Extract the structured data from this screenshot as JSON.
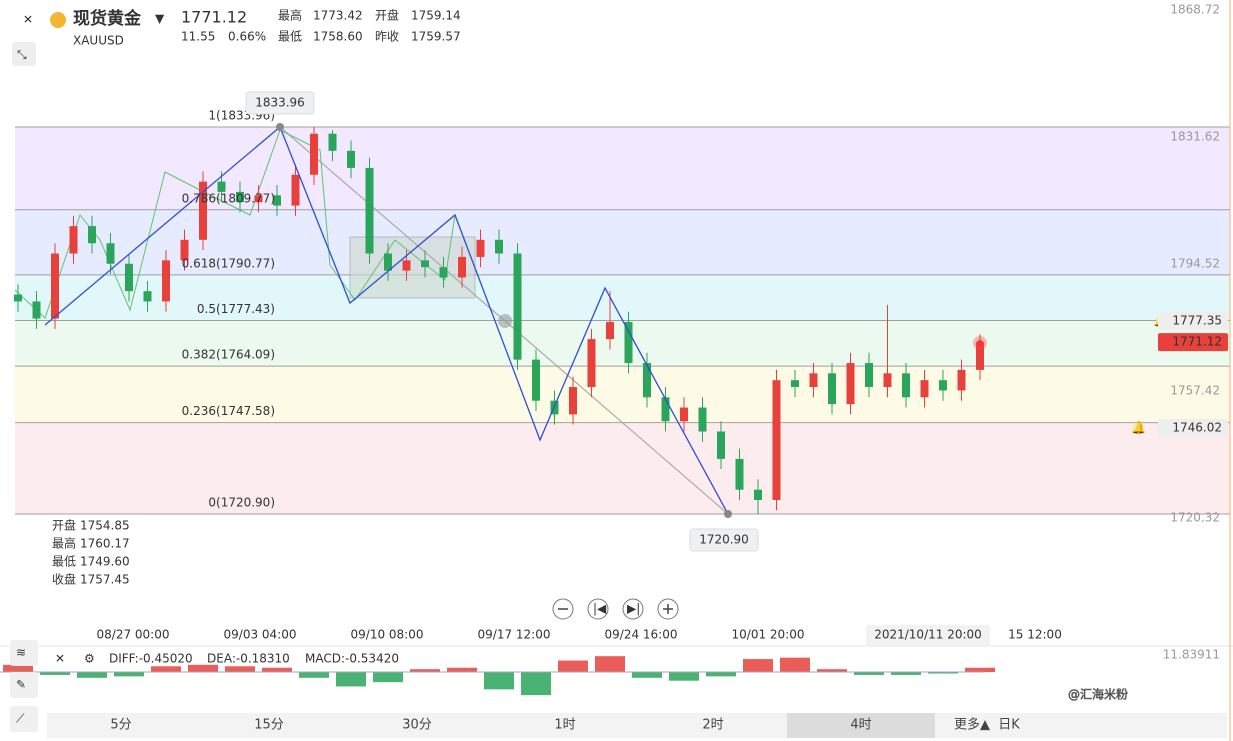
{
  "header": {
    "name": "现货黄金",
    "symbol": "XAUUSD",
    "price": "1771.12",
    "change": "11.55",
    "change_pct": "0.66%",
    "stats": [
      {
        "label": "最高",
        "value": "1773.42"
      },
      {
        "label": "开盘",
        "value": "1759.14"
      },
      {
        "label": "最低",
        "value": "1758.60"
      },
      {
        "label": "昨收",
        "value": "1759.57"
      }
    ]
  },
  "ohlc_box": [
    {
      "label": "开盘",
      "value": "1754.85"
    },
    {
      "label": "最高",
      "value": "1760.17"
    },
    {
      "label": "最低",
      "value": "1749.60"
    },
    {
      "label": "收盘",
      "value": "1757.45"
    }
  ],
  "chart_data": {
    "type": "candlestick",
    "up_color": "#e8413c",
    "down_color": "#2aa55b",
    "open": [
      1785,
      1783,
      1778,
      1797,
      1805,
      1800,
      1794,
      1786,
      1783,
      1795,
      1801,
      1818,
      1815,
      1812,
      1814,
      1811,
      1820,
      1832,
      1827,
      1822,
      1797,
      1792,
      1795,
      1793,
      1790,
      1796,
      1801,
      1797,
      1766,
      1754,
      1750,
      1758,
      1772,
      1777,
      1765,
      1755,
      1748,
      1752,
      1745,
      1737,
      1728,
      1725,
      1760,
      1758,
      1762,
      1753,
      1765,
      1758,
      1762,
      1755,
      1760,
      1757,
      1763
    ],
    "high": [
      1788,
      1786,
      1800,
      1808,
      1808,
      1803,
      1797,
      1789,
      1798,
      1804,
      1821,
      1821,
      1818,
      1817,
      1817,
      1823,
      1833.96,
      1833,
      1830,
      1825,
      1800,
      1798,
      1798,
      1796,
      1799,
      1804,
      1804,
      1800,
      1769,
      1757,
      1761,
      1775,
      1786,
      1780,
      1768,
      1758,
      1755,
      1755,
      1748,
      1740,
      1731,
      1763,
      1763,
      1765,
      1765,
      1768,
      1768,
      1782,
      1765,
      1763,
      1763,
      1766,
      1773.42
    ],
    "low": [
      1780,
      1775,
      1775,
      1794,
      1797,
      1791,
      1783,
      1780,
      1780,
      1792,
      1798,
      1812,
      1809,
      1809,
      1808,
      1808,
      1817,
      1824,
      1819,
      1794,
      1789,
      1789,
      1790,
      1787,
      1787,
      1793,
      1794,
      1763,
      1751,
      1747,
      1747,
      1755,
      1769,
      1762,
      1752,
      1745,
      1745,
      1742,
      1734,
      1725,
      1720.9,
      1722,
      1755,
      1755,
      1750,
      1750,
      1755,
      1755,
      1752,
      1752,
      1754,
      1754,
      1760
    ],
    "close": [
      1783,
      1778,
      1797,
      1805,
      1800,
      1794,
      1786,
      1783,
      1795,
      1801,
      1818,
      1815,
      1812,
      1814,
      1811,
      1820,
      1832,
      1827,
      1822,
      1797,
      1792,
      1795,
      1793,
      1790,
      1796,
      1801,
      1797,
      1766,
      1754,
      1750,
      1758,
      1772,
      1777,
      1765,
      1755,
      1748,
      1752,
      1745,
      1737,
      1728,
      1725,
      1760,
      1758,
      1762,
      1753,
      1765,
      1758,
      1762,
      1755,
      1760,
      1757,
      1763,
      1771.12
    ],
    "ylim": [
      1695.78,
      1871.06
    ],
    "yticks": [
      1868.72,
      1831.62,
      1794.52,
      1757.42,
      1720.32
    ],
    "fib_levels": [
      {
        "value": 1833.96,
        "label": "1(1833.96)"
      },
      {
        "value": 1809.77,
        "label": "0.786(1809.77)"
      },
      {
        "value": 1790.77,
        "label": "0.618(1790.77)"
      },
      {
        "value": 1777.43,
        "label": "0.5(1777.43)"
      },
      {
        "value": 1764.09,
        "label": "0.382(1764.09)"
      },
      {
        "value": 1747.58,
        "label": "0.236(1747.58)"
      },
      {
        "value": 1720.9,
        "label": "0(1720.90)"
      }
    ],
    "band_colors": [
      "#f1e6ff",
      "#e4e9ff",
      "#def6fa",
      "#e9f8ec",
      "#fdfbe3",
      "#fdeaec"
    ],
    "markers": [
      {
        "value": 1833.96,
        "label": "1833.96"
      },
      {
        "value": 1720.9,
        "label": "1720.90"
      }
    ],
    "price_tags": [
      1777.35,
      1771.12,
      1746.02
    ],
    "x_labels": [
      "08/27 00:00",
      "09/03 04:00",
      "09/10 08:00",
      "09/17 12:00",
      "09/24 16:00",
      "10/01 20:00",
      "15 12:00"
    ],
    "crosshair_label": "2021/10/11 20:00"
  },
  "macd": {
    "type": "bar",
    "legend": [
      "DIFF:-0.45020",
      "DEA:-0.18310",
      "MACD:-0.53420"
    ],
    "values": [
      5,
      -2,
      -4,
      -3,
      4,
      5,
      4,
      3,
      -4,
      -10,
      -7,
      2,
      3,
      -12,
      -16,
      8,
      11,
      -4,
      -6,
      -3,
      9,
      10,
      2,
      -2,
      -2,
      -1,
      3
    ],
    "ylim": [
      -19.4,
      11.83911
    ],
    "yticks": [
      11.83911
    ]
  },
  "timeframes": [
    "5分",
    "15分",
    "30分",
    "1时",
    "2时",
    "4时",
    "日K",
    "更多▲"
  ],
  "watermark": "@汇海米粉"
}
